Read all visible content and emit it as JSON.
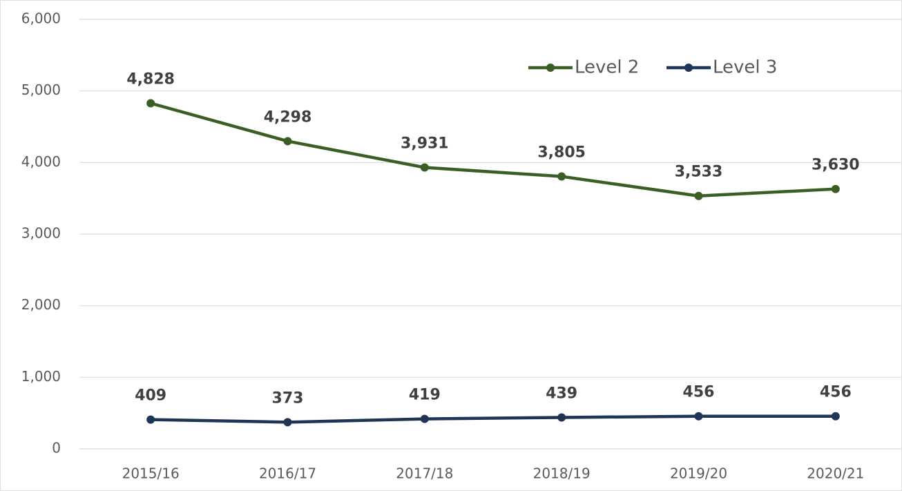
{
  "chart_data": {
    "type": "line",
    "categories": [
      "2015/16",
      "2016/17",
      "2017/18",
      "2018/19",
      "2019/20",
      "2020/21"
    ],
    "series": [
      {
        "name": "Level 2",
        "color": "#3b5e24",
        "values": [
          4828,
          4298,
          3931,
          3805,
          3533,
          3630
        ],
        "value_labels": [
          "4,828",
          "4,298",
          "3,931",
          "3,805",
          "3,533",
          "3,630"
        ]
      },
      {
        "name": "Level 3",
        "color": "#1f3556",
        "values": [
          409,
          373,
          419,
          439,
          456,
          456
        ]
      }
    ],
    "ylim": [
      0,
      6000
    ],
    "yticks": [
      0,
      {
        "value": 1000,
        "label": "1,000"
      },
      {
        "value": 2000,
        "label": "2,000"
      },
      {
        "value": 3000,
        "label": "3,000"
      },
      {
        "value": 4000,
        "label": "4,000"
      },
      {
        "value": 5000,
        "label": "5,000"
      },
      {
        "value": 6000,
        "label": "6,000"
      }
    ],
    "grid": true,
    "legend": "upper right"
  }
}
